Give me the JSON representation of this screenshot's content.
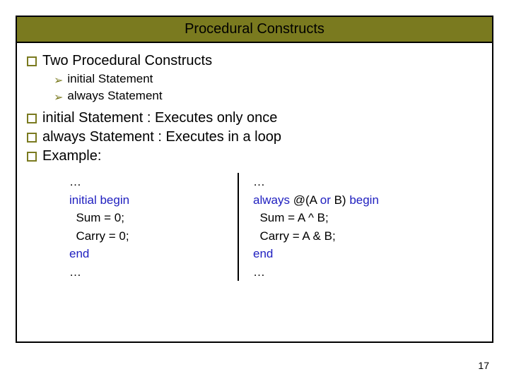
{
  "title": "Procedural Constructs",
  "bullets": {
    "b1": "Two Procedural Constructs",
    "s1a_kw": "initial",
    "s1a_rest": " Statement",
    "s1b_kw": "always",
    "s1b_rest": " Statement",
    "b2_kw": "initial",
    "b2_rest": " Statement : Executes only once",
    "b3_kw": "always",
    "b3_rest": " Statement : Executes in a loop",
    "b4": "Example:"
  },
  "code_left": {
    "l1": "…",
    "l2a": "initial",
    "l2b": " begin",
    "l3": "  Sum = 0;",
    "l4": "  Carry = 0;",
    "l5": "end",
    "l6": "…"
  },
  "code_right": {
    "l1": "…",
    "l2a": "always",
    "l2b": " @(A ",
    "l2c": "or",
    "l2d": " B) ",
    "l2e": "begin",
    "l3": "  Sum = A ^ B;",
    "l4": "  Carry = A & B;",
    "l5": "end",
    "l6": "…"
  },
  "page": "17",
  "colors": {
    "olive": "#7a7a1f",
    "blue": "#2020c0"
  }
}
